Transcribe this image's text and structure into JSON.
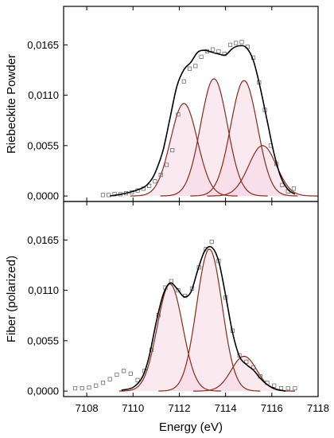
{
  "chart_data": {
    "type": "line",
    "xlabel": "Energy (eV)",
    "xlim": [
      7107,
      7118
    ],
    "x_ticks": [
      7108,
      7110,
      7112,
      7114,
      7116,
      7118
    ],
    "x_tick_labels": [
      "7108",
      "7110",
      "7112",
      "7114",
      "7116",
      "7118"
    ],
    "colors": {
      "fit": "#000000",
      "component": "#8b2a1a",
      "data": "#707070",
      "fill": "#f7d7e4"
    },
    "panels": [
      {
        "ylabel": "Riebeckite Powder",
        "ylim": [
          -0.0006,
          0.0207
        ],
        "y_ticks": [
          0.0,
          0.0055,
          0.011,
          0.0165
        ],
        "y_tick_labels": [
          "0,0000",
          "0,0055",
          "0,0110",
          "0,0165"
        ],
        "components": [
          {
            "center": 7112.2,
            "amplitude": 0.0101,
            "sigma": 0.58
          },
          {
            "center": 7113.5,
            "amplitude": 0.0128,
            "sigma": 0.58
          },
          {
            "center": 7114.8,
            "amplitude": 0.0126,
            "sigma": 0.58
          },
          {
            "center": 7115.6,
            "amplitude": 0.0055,
            "sigma": 0.6
          }
        ],
        "fit_curve": {
          "x": [
            7109.0,
            7109.5,
            7110.0,
            7110.5,
            7110.8,
            7111.0,
            7111.3,
            7111.6,
            7111.9,
            7112.2,
            7112.5,
            7112.8,
            7113.1,
            7113.4,
            7113.7,
            7114.0,
            7114.3,
            7114.6,
            7114.9,
            7115.2,
            7115.5,
            7115.8,
            7116.1,
            7116.4,
            7116.7,
            7117.0
          ],
          "y": [
            0.0,
            0.0002,
            0.0005,
            0.001,
            0.0018,
            0.0028,
            0.005,
            0.0085,
            0.012,
            0.0138,
            0.0146,
            0.0157,
            0.0159,
            0.0157,
            0.0155,
            0.0154,
            0.0161,
            0.0164,
            0.0162,
            0.0148,
            0.0118,
            0.0082,
            0.0046,
            0.002,
            0.0007,
            0.0002
          ]
        },
        "data_points": {
          "x": [
            7108.7,
            7108.95,
            7109.2,
            7109.45,
            7109.7,
            7109.95,
            7110.2,
            7110.45,
            7110.7,
            7110.95,
            7111.2,
            7111.45,
            7111.7,
            7111.95,
            7112.2,
            7112.45,
            7112.7,
            7112.95,
            7113.2,
            7113.45,
            7113.7,
            7113.95,
            7114.2,
            7114.45,
            7114.7,
            7114.95,
            7115.2,
            7115.45,
            7115.7,
            7115.95,
            7116.2,
            7116.45,
            7116.7,
            7116.95
          ],
          "y": [
            0.0001,
            0.0001,
            0.0002,
            0.0002,
            0.0003,
            0.0004,
            0.0006,
            0.0008,
            0.0011,
            0.0016,
            0.0023,
            0.0034,
            0.005,
            0.0089,
            0.0125,
            0.0139,
            0.0142,
            0.0152,
            0.0158,
            0.016,
            0.0158,
            0.0155,
            0.0165,
            0.0167,
            0.0168,
            0.0163,
            0.0151,
            0.0124,
            0.0094,
            0.0055,
            0.0035,
            0.0012,
            0.0005,
            0.0008
          ]
        }
      },
      {
        "ylabel": "Fiber (polarized)",
        "ylim": [
          -0.0006,
          0.0207
        ],
        "y_ticks": [
          0.0,
          0.0055,
          0.011,
          0.0165
        ],
        "y_tick_labels": [
          "0,0000",
          "0,0055",
          "0,0110",
          "0,0165"
        ],
        "components": [
          {
            "center": 7111.6,
            "amplitude": 0.0117,
            "sigma": 0.55
          },
          {
            "center": 7113.3,
            "amplitude": 0.0155,
            "sigma": 0.55
          },
          {
            "center": 7114.8,
            "amplitude": 0.0038,
            "sigma": 0.55
          }
        ],
        "fit_curve": {
          "x": [
            7109.5,
            7110.0,
            7110.4,
            7110.7,
            7111.0,
            7111.3,
            7111.6,
            7111.9,
            7112.2,
            7112.5,
            7112.8,
            7113.1,
            7113.4,
            7113.7,
            7114.0,
            7114.3,
            7114.6,
            7114.9,
            7115.2,
            7115.5,
            7115.8,
            7116.2,
            7116.6
          ],
          "y": [
            0.0001,
            0.0004,
            0.0015,
            0.0038,
            0.0075,
            0.0105,
            0.0118,
            0.0112,
            0.0103,
            0.0108,
            0.0132,
            0.0153,
            0.0157,
            0.0142,
            0.0105,
            0.0064,
            0.0038,
            0.0029,
            0.0023,
            0.0014,
            0.0007,
            0.0002,
            0.0
          ]
        },
        "data_points": {
          "x": [
            7107.5,
            7107.8,
            7108.1,
            7108.4,
            7108.7,
            7109.0,
            7109.3,
            7109.6,
            7109.9,
            7110.2,
            7110.5,
            7110.8,
            7111.1,
            7111.4,
            7111.65,
            7111.95,
            7112.25,
            7112.55,
            7112.85,
            7113.15,
            7113.4,
            7113.7,
            7114.0,
            7114.3,
            7114.6,
            7114.9,
            7115.2,
            7115.5,
            7115.8,
            7116.1,
            7116.4,
            7116.7,
            7117.0
          ],
          "y": [
            0.0003,
            0.0003,
            0.0004,
            0.0006,
            0.0009,
            0.0013,
            0.0018,
            0.0022,
            0.0019,
            0.0012,
            0.0022,
            0.0045,
            0.0083,
            0.0113,
            0.012,
            0.011,
            0.0104,
            0.0112,
            0.0135,
            0.0155,
            0.0163,
            0.0142,
            0.0102,
            0.0066,
            0.0039,
            0.0032,
            0.0026,
            0.0016,
            0.0009,
            0.0006,
            0.0003,
            0.0003,
            0.0003
          ]
        }
      }
    ]
  }
}
